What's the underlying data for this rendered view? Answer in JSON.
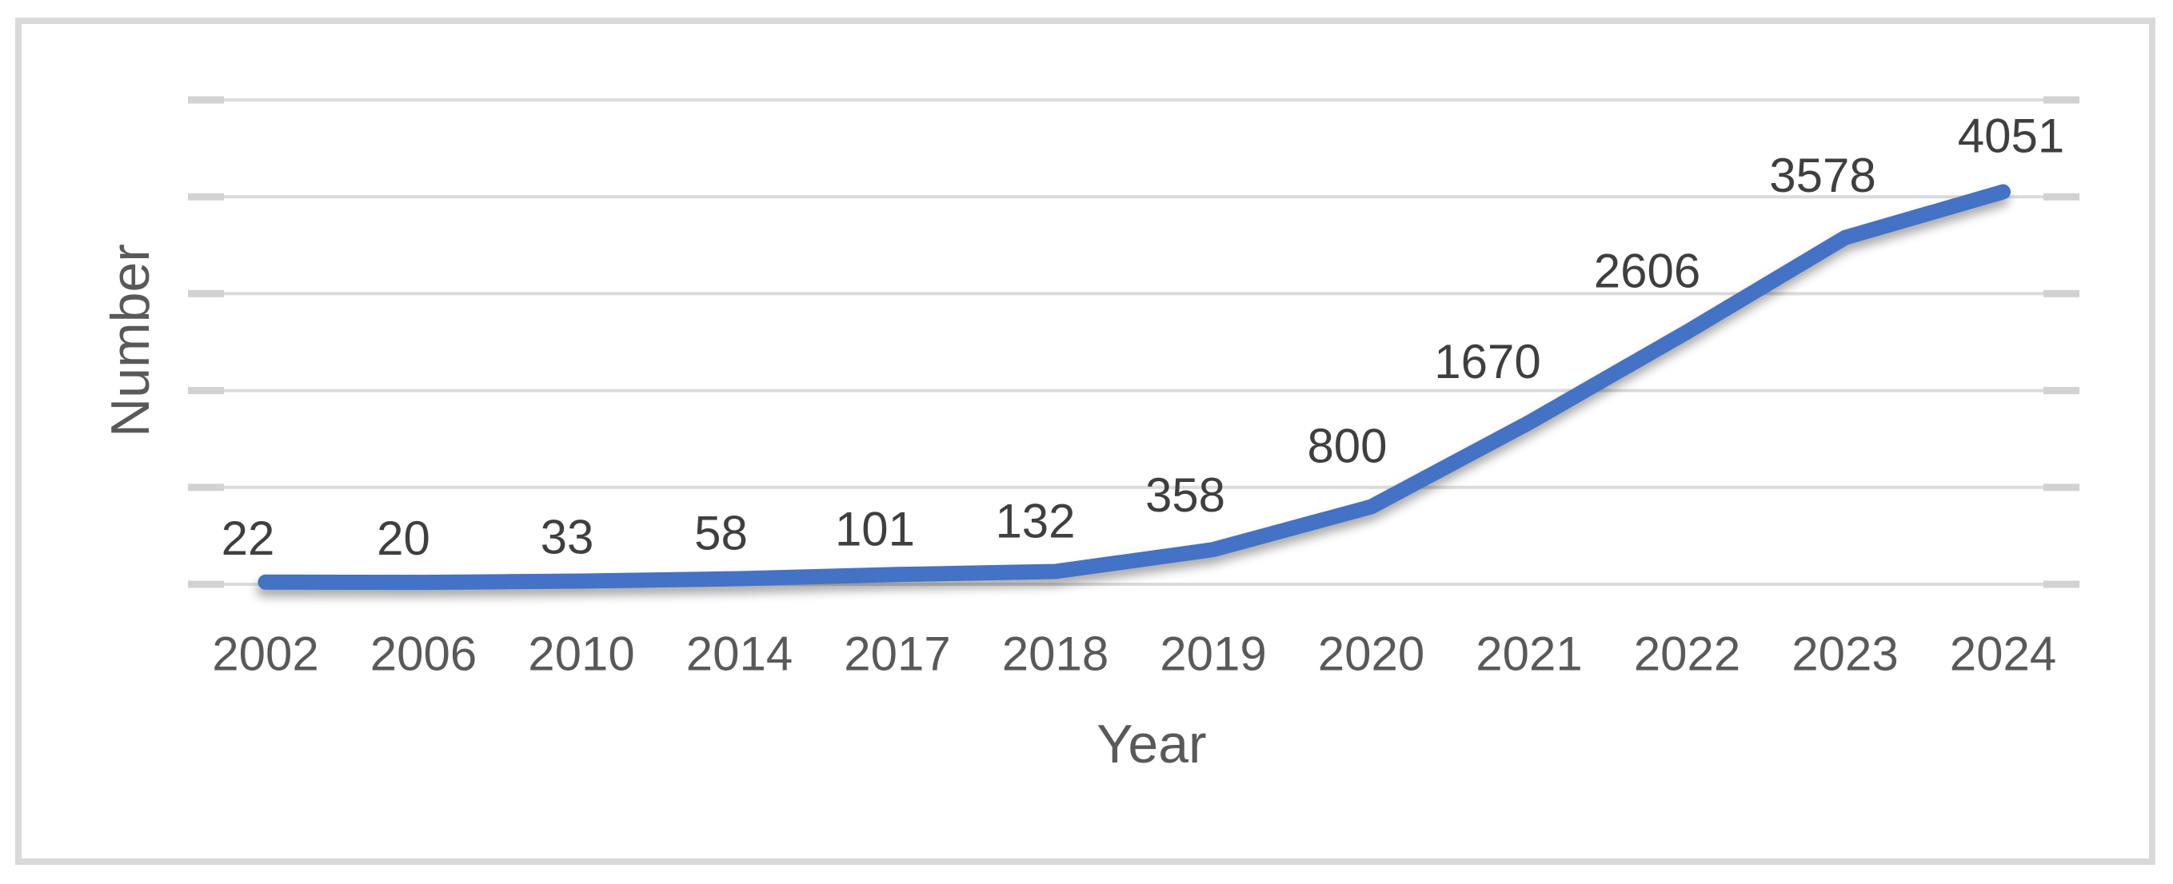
{
  "figure": {
    "border_color": "#D9D9D9",
    "gridline_color": "#DBDBDB",
    "tick_color": "#D2D2D2",
    "line_color": "#4472C4",
    "data_label_color": "#3F3F3F",
    "axis_label_color": "#595959"
  },
  "chart_data": {
    "type": "line",
    "title": "",
    "xlabel": "Year",
    "ylabel": "Number",
    "categories": [
      "2002",
      "2006",
      "2010",
      "2014",
      "2017",
      "2018",
      "2019",
      "2020",
      "2021",
      "2022",
      "2023",
      "2024"
    ],
    "values": [
      22,
      20,
      33,
      58,
      101,
      132,
      358,
      800,
      1670,
      2606,
      3578,
      4051
    ],
    "data_labels": [
      "22",
      "20",
      "33",
      "58",
      "101",
      "132",
      "358",
      "800",
      "1670",
      "2606",
      "3578",
      "4051"
    ],
    "ylim": [
      0,
      5000
    ],
    "gridline_step": 1000,
    "grid": true,
    "legend": false,
    "series_name": "Number",
    "series_color": "#4472C4",
    "y_tick_labels_shown": false
  }
}
